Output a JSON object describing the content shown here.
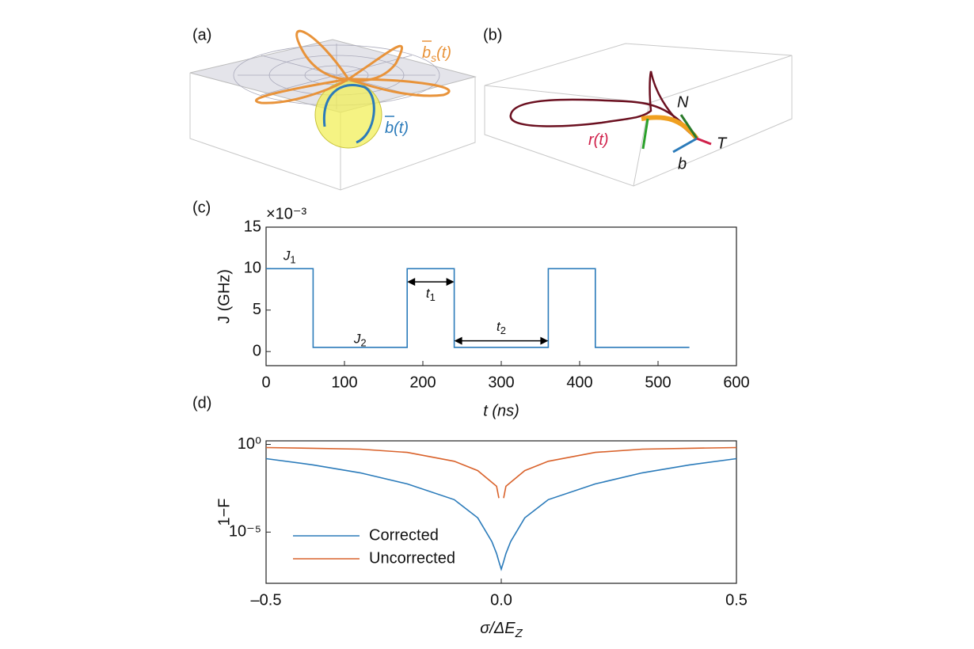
{
  "panel_a": {
    "label": "(a)",
    "bs": {
      "sym": "b",
      "sub": "s",
      "arg": "(t)"
    },
    "b": {
      "sym": "b",
      "arg": "(t)"
    }
  },
  "panel_b": {
    "label": "(b)",
    "r": {
      "sym": "r",
      "arg": "(t)"
    },
    "N": "N",
    "T": "T",
    "b": "b"
  },
  "chart_data": [
    {
      "type": "line",
      "panel_label": "(c)",
      "xlabel": "t (ns)",
      "ylabel": "J (GHz)",
      "y_multiplier": "×10⁻³",
      "x": [
        0,
        60,
        60,
        180,
        180,
        240,
        240,
        360,
        360,
        420,
        420,
        540
      ],
      "values": [
        10,
        10,
        0.5,
        0.5,
        10,
        10,
        0.5,
        0.5,
        10,
        10,
        0.5,
        0.5
      ],
      "color": "#2b7bba",
      "xlim": [
        0,
        600
      ],
      "xticks": [
        0,
        100,
        200,
        300,
        400,
        500,
        600
      ],
      "ylim": [
        -1.7,
        15
      ],
      "yticks": [
        0,
        5,
        10,
        15
      ],
      "annotations": [
        {
          "text": "J",
          "sub": "1"
        },
        {
          "text": "J",
          "sub": "2"
        },
        {
          "text": "t",
          "sub": "1"
        },
        {
          "text": "t",
          "sub": "2"
        }
      ]
    },
    {
      "type": "line",
      "panel_label": "(d)",
      "xlabel": "σ/ΔE",
      "xlabel_sub": "Z",
      "ylabel": "1−F",
      "log_y": true,
      "legend": "lower-left",
      "x": [
        -0.5,
        -0.4,
        -0.3,
        -0.2,
        -0.1,
        -0.05,
        -0.02,
        -0.01,
        -0.005,
        0,
        0.005,
        0.01,
        0.02,
        0.05,
        0.1,
        0.2,
        0.3,
        0.4,
        0.5
      ],
      "series": [
        {
          "name": "Corrected",
          "color": "#2b7bba",
          "values": [
            0.155,
            0.068,
            0.024,
            0.0056,
            0.00071,
            6.5e-05,
            2.9e-06,
            6e-07,
            2.1e-07,
            7.6e-08,
            2.1e-07,
            6e-07,
            2.9e-06,
            6.5e-05,
            0.00071,
            0.0056,
            0.024,
            0.068,
            0.155
          ]
        },
        {
          "name": "Uncorrected",
          "color": "#d9622b",
          "values": [
            0.66,
            0.6,
            0.54,
            0.35,
            0.11,
            0.032,
            0.0069,
            0.0041,
            0.00087,
            null,
            0.00087,
            0.0041,
            0.0069,
            0.032,
            0.11,
            0.35,
            0.54,
            0.6,
            0.66
          ]
        }
      ],
      "xlim": [
        -0.5,
        0.5
      ],
      "xticks": [
        {
          "value": -0.5,
          "label": "–0.5"
        },
        {
          "value": 0,
          "label": "0.0"
        },
        {
          "value": 0.5,
          "label": "0.5"
        }
      ],
      "ylim": [
        1.2e-08,
        1.6
      ],
      "yticks": [
        {
          "value": 1,
          "label": "10⁰"
        },
        {
          "value": 1e-05,
          "label": "10⁻⁵"
        }
      ]
    }
  ]
}
